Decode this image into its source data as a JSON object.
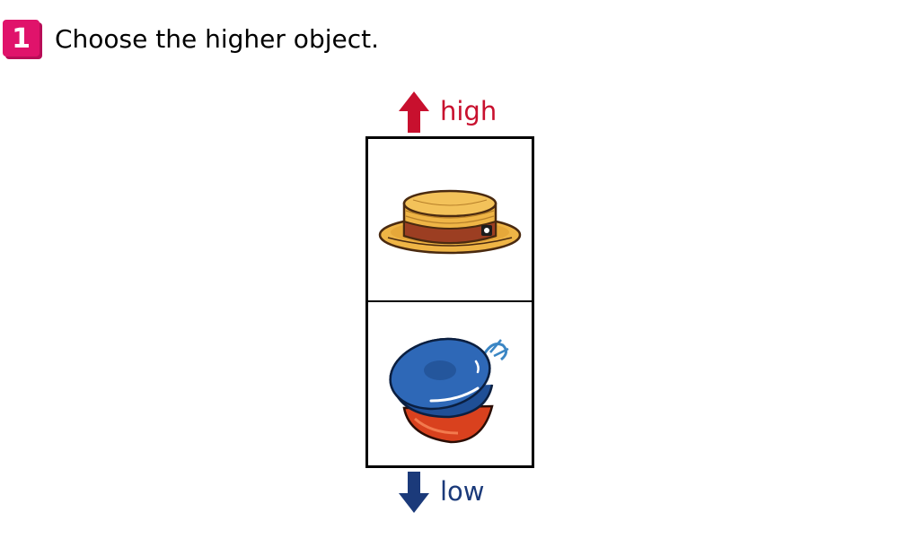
{
  "question": {
    "number": "1",
    "text": "Choose the higher object.",
    "badge_color": "#e0136b"
  },
  "scale": {
    "high_label": "high",
    "high_color": "#c8102e",
    "high_icon": "arrow-up-icon",
    "low_label": "low",
    "low_color": "#1b3a7a",
    "low_icon": "arrow-down-icon"
  },
  "options": [
    {
      "object": "straw-hat",
      "icon": "straw-hat-icon"
    },
    {
      "object": "castanets",
      "icon": "castanets-icon"
    }
  ]
}
